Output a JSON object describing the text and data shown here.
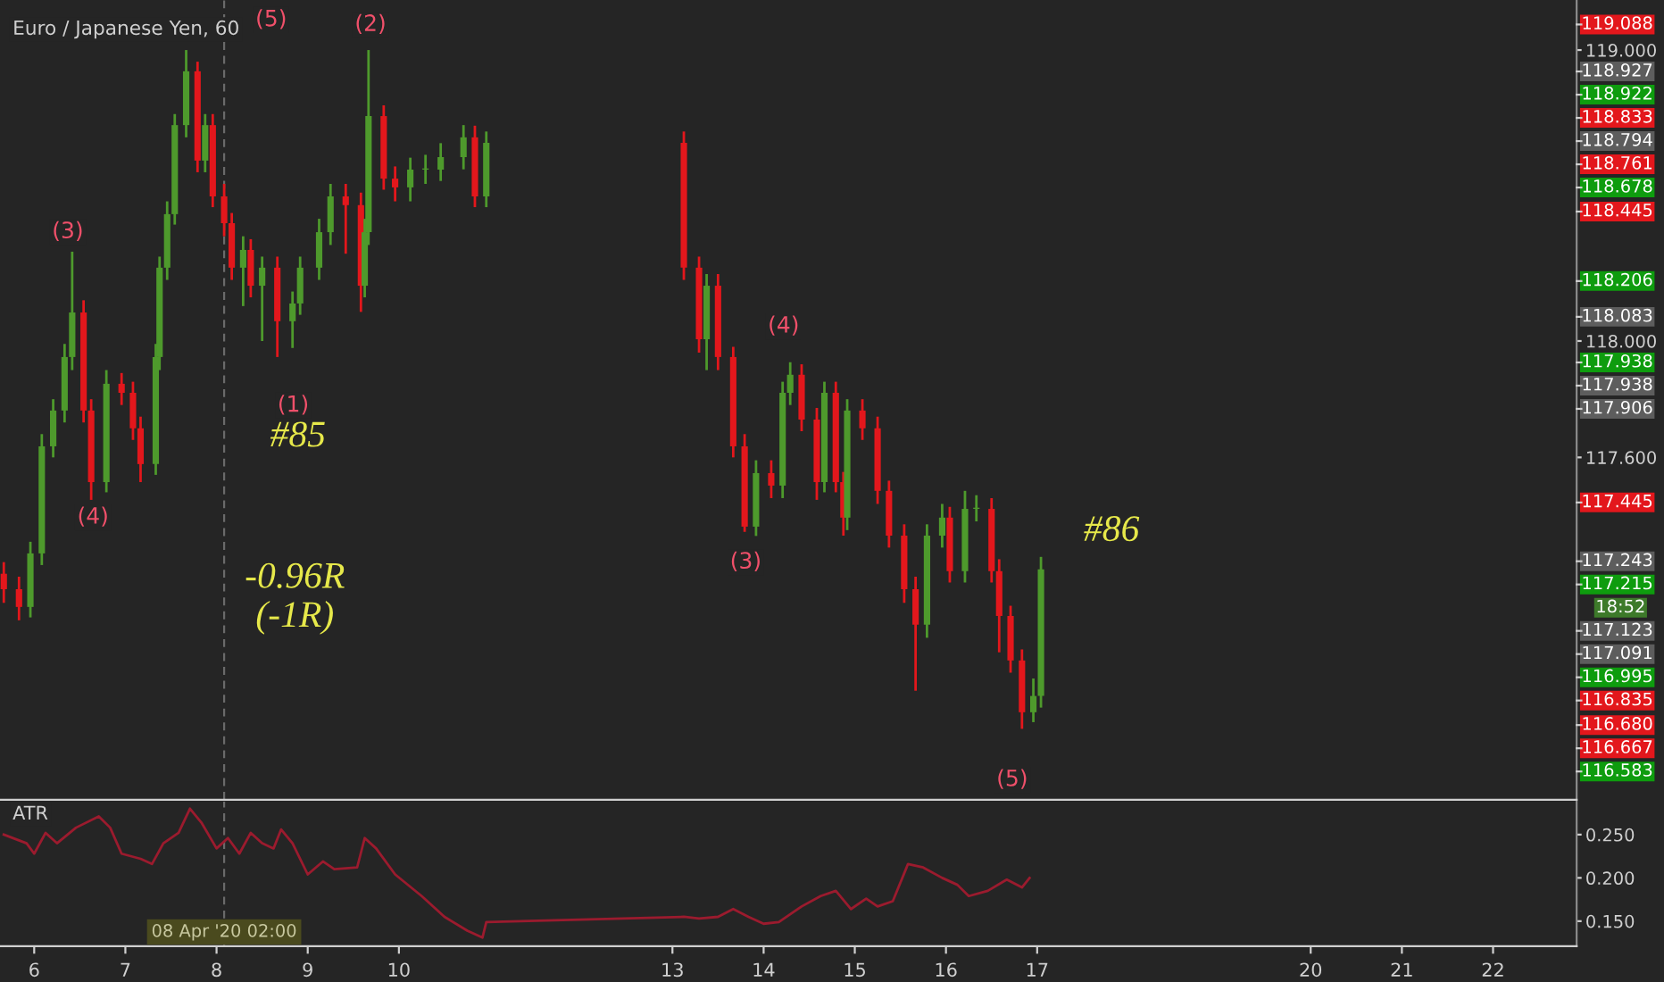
{
  "chart_data": [
    {
      "type": "candlestick",
      "title": "Euro / Japanese Yen, 60",
      "tick_labels": "y",
      "x": [
        "2020-04-05T16:00",
        "2020-04-05T20:00",
        "2020-04-05T23:00",
        "2020-04-06T02:00",
        "2020-04-06T05:00",
        "2020-04-06T08:00",
        "2020-04-06T10:00",
        "2020-04-06T13:00",
        "2020-04-06T15:00",
        "2020-04-06T19:00",
        "2020-04-06T23:00",
        "2020-04-07T02:00",
        "2020-04-07T04:00",
        "2020-04-07T08:00",
        "2020-04-07T09:00",
        "2020-04-07T11:00",
        "2020-04-07T13:00",
        "2020-04-07T16:00",
        "2020-04-07T19:00",
        "2020-04-07T21:00",
        "2020-04-07T23:00",
        "2020-04-08T02:00",
        "2020-04-08T04:00",
        "2020-04-08T07:00",
        "2020-04-08T09:00",
        "2020-04-08T12:00",
        "2020-04-08T16:00",
        "2020-04-08T20:00",
        "2020-04-08T22:00",
        "2020-04-09T03:00",
        "2020-04-09T06:00",
        "2020-04-09T10:00",
        "2020-04-09T14:00",
        "2020-04-09T15:00",
        "2020-04-09T16:00",
        "2020-04-09T20:00",
        "2020-04-09T23:00",
        "2020-04-10T03:00",
        "2020-04-10T07:00",
        "2020-04-10T11:00",
        "2020-04-10T17:00",
        "2020-04-10T20:00",
        "2020-04-10T23:00",
        "2020-04-13T03:00",
        "2020-04-13T07:00",
        "2020-04-13T09:00",
        "2020-04-13T12:00",
        "2020-04-13T16:00",
        "2020-04-13T19:00",
        "2020-04-13T22:00",
        "2020-04-14T02:00",
        "2020-04-14T05:00",
        "2020-04-14T07:00",
        "2020-04-14T10:00",
        "2020-04-14T14:00",
        "2020-04-14T16:00",
        "2020-04-14T19:00",
        "2020-04-14T21:00",
        "2020-04-14T22:00",
        "2020-04-15T02:00",
        "2020-04-15T06:00",
        "2020-04-15T09:00",
        "2020-04-15T13:00",
        "2020-04-15T16:00",
        "2020-04-15T19:00",
        "2020-04-15T23:00",
        "2020-04-16T01:00",
        "2020-04-16T05:00",
        "2020-04-16T08:00",
        "2020-04-16T12:00",
        "2020-04-16T14:00",
        "2020-04-16T17:00",
        "2020-04-16T20:00",
        "2020-04-16T23:00",
        "2020-04-17T01:00"
      ],
      "ohlc": [
        [
          117.2,
          117.24,
          117.1,
          117.147
        ],
        [
          117.147,
          117.19,
          117.04,
          117.086
        ],
        [
          117.086,
          117.31,
          117.05,
          117.27
        ],
        [
          117.27,
          117.68,
          117.23,
          117.638
        ],
        [
          117.638,
          117.8,
          117.6,
          117.761
        ],
        [
          117.761,
          117.99,
          117.72,
          117.945
        ],
        [
          117.945,
          118.307,
          117.9,
          118.098
        ],
        [
          118.098,
          118.14,
          117.72,
          117.761
        ],
        [
          117.761,
          117.8,
          117.454,
          117.515
        ],
        [
          117.515,
          117.9,
          117.48,
          117.853
        ],
        [
          117.853,
          117.89,
          117.78,
          117.822
        ],
        [
          117.822,
          117.86,
          117.66,
          117.7
        ],
        [
          117.7,
          117.74,
          117.515,
          117.577
        ],
        [
          117.577,
          117.99,
          117.54,
          117.945
        ],
        [
          117.945,
          118.29,
          117.9,
          118.252
        ],
        [
          118.252,
          118.48,
          118.21,
          118.436
        ],
        [
          118.436,
          118.78,
          118.4,
          118.742
        ],
        [
          118.742,
          119.0,
          118.7,
          118.927
        ],
        [
          118.927,
          118.96,
          118.58,
          118.62
        ],
        [
          118.62,
          118.78,
          118.58,
          118.742
        ],
        [
          118.742,
          118.78,
          118.46,
          118.497
        ],
        [
          118.497,
          118.54,
          118.36,
          118.405
        ],
        [
          118.405,
          118.44,
          118.21,
          118.252
        ],
        [
          118.252,
          118.36,
          118.12,
          118.313
        ],
        [
          118.313,
          118.35,
          118.15,
          118.19
        ],
        [
          118.19,
          118.29,
          118.0,
          118.252
        ],
        [
          118.252,
          118.29,
          117.945,
          118.068
        ],
        [
          118.068,
          118.17,
          117.976,
          118.129
        ],
        [
          118.129,
          118.29,
          118.09,
          118.252
        ],
        [
          118.252,
          118.42,
          118.21,
          118.374
        ],
        [
          118.374,
          118.54,
          118.33,
          118.497
        ],
        [
          118.497,
          118.54,
          118.3,
          118.467
        ],
        [
          118.467,
          118.51,
          118.1,
          118.19
        ],
        [
          118.19,
          118.42,
          118.15,
          118.374
        ],
        [
          118.374,
          119.0,
          118.33,
          118.773
        ],
        [
          118.773,
          118.81,
          118.52,
          118.558
        ],
        [
          118.558,
          118.6,
          118.48,
          118.528
        ],
        [
          118.528,
          118.63,
          118.48,
          118.589
        ],
        [
          118.589,
          118.64,
          118.54,
          118.589
        ],
        [
          118.589,
          118.68,
          118.55,
          118.632
        ],
        [
          118.632,
          118.742,
          118.59,
          118.7
        ],
        [
          118.7,
          118.74,
          118.46,
          118.497
        ],
        [
          118.497,
          118.72,
          118.46,
          118.681
        ],
        [
          118.681,
          118.72,
          118.21,
          118.252
        ],
        [
          118.252,
          118.29,
          117.96,
          118.006
        ],
        [
          118.006,
          118.23,
          117.9,
          118.19
        ],
        [
          118.19,
          118.23,
          117.9,
          117.945
        ],
        [
          117.945,
          117.98,
          117.6,
          117.638
        ],
        [
          117.638,
          117.68,
          117.344,
          117.362
        ],
        [
          117.362,
          117.59,
          117.33,
          117.546
        ],
        [
          117.546,
          117.59,
          117.46,
          117.503
        ],
        [
          117.503,
          117.86,
          117.46,
          117.822
        ],
        [
          117.822,
          117.927,
          117.78,
          117.884
        ],
        [
          117.884,
          117.92,
          117.69,
          117.73
        ],
        [
          117.73,
          117.77,
          117.454,
          117.515
        ],
        [
          117.515,
          117.86,
          117.48,
          117.822
        ],
        [
          117.822,
          117.86,
          117.48,
          117.515
        ],
        [
          117.515,
          117.55,
          117.331,
          117.393
        ],
        [
          117.393,
          117.8,
          117.35,
          117.761
        ],
        [
          117.761,
          117.8,
          117.66,
          117.7
        ],
        [
          117.7,
          117.74,
          117.44,
          117.485
        ],
        [
          117.485,
          117.52,
          117.29,
          117.331
        ],
        [
          117.331,
          117.37,
          117.1,
          117.147
        ],
        [
          117.147,
          117.19,
          116.798,
          117.025
        ],
        [
          117.025,
          117.37,
          116.98,
          117.331
        ],
        [
          117.331,
          117.44,
          117.29,
          117.393
        ],
        [
          117.393,
          117.43,
          117.17,
          117.209
        ],
        [
          117.209,
          117.485,
          117.17,
          117.423
        ],
        [
          117.423,
          117.47,
          117.38,
          117.423
        ],
        [
          117.423,
          117.46,
          117.17,
          117.209
        ],
        [
          117.209,
          117.25,
          116.93,
          117.055
        ],
        [
          117.055,
          117.09,
          116.86,
          116.902
        ],
        [
          116.902,
          116.94,
          116.667,
          116.724
        ],
        [
          116.724,
          116.84,
          116.69,
          116.78
        ],
        [
          116.78,
          117.258,
          116.74,
          117.215
        ]
      ],
      "colors": [
        "#e3171c",
        "#e3171c",
        "#4e9a2c",
        "#4e9a2c",
        "#4e9a2c",
        "#4e9a2c",
        "#4e9a2c",
        "#e3171c",
        "#e3171c",
        "#4e9a2c",
        "#e3171c",
        "#e3171c",
        "#e3171c",
        "#4e9a2c",
        "#4e9a2c",
        "#4e9a2c",
        "#4e9a2c",
        "#4e9a2c",
        "#e3171c",
        "#4e9a2c",
        "#e3171c",
        "#e3171c",
        "#e3171c",
        "#4e9a2c",
        "#e3171c",
        "#4e9a2c",
        "#e3171c",
        "#4e9a2c",
        "#4e9a2c",
        "#4e9a2c",
        "#4e9a2c",
        "#e3171c",
        "#e3171c",
        "#4e9a2c",
        "#4e9a2c",
        "#e3171c",
        "#e3171c",
        "#4e9a2c",
        "#4e9a2c",
        "#4e9a2c",
        "#4e9a2c",
        "#e3171c",
        "#4e9a2c",
        "#e3171c",
        "#e3171c",
        "#4e9a2c",
        "#e3171c",
        "#e3171c",
        "#e3171c",
        "#4e9a2c",
        "#e3171c",
        "#4e9a2c",
        "#4e9a2c",
        "#e3171c",
        "#e3171c",
        "#4e9a2c",
        "#e3171c",
        "#e3171c",
        "#4e9a2c",
        "#e3171c",
        "#e3171c",
        "#e3171c",
        "#e3171c",
        "#e3171c",
        "#4e9a2c",
        "#4e9a2c",
        "#e3171c",
        "#4e9a2c",
        "#4e9a2c",
        "#e3171c",
        "#e3171c",
        "#e3171c",
        "#e3171c",
        "#4e9a2c",
        "#4e9a2c"
      ],
      "xlim": [
        "2020-04-05T15:00",
        "2020-04-22T22:00"
      ],
      "ylim": [
        116.423,
        119.172
      ],
      "yticks": [
        {
          "value": 119.0,
          "label": "119.000"
        },
        {
          "value": 118.0,
          "label": "118.000"
        },
        {
          "value": 117.6,
          "label": "117.600"
        }
      ],
      "ref_lines": [
        {
          "axis": "x",
          "value": "2020-04-08T02:00",
          "label": null,
          "line_style": "dashed",
          "color": "#6a6a6a"
        }
      ],
      "annotations": [
        "(5)",
        "(2)",
        "(3)",
        "(4)",
        "(1)",
        "(3)",
        "(4)",
        "(5)",
        "#85",
        "-0.96R\n(-1R)",
        "#86",
        "119.088",
        "118.927",
        "118.922",
        "118.833",
        "118.794",
        "118.761",
        "118.678",
        "118.445",
        "118.206",
        "118.083",
        "117.938",
        "117.938",
        "117.906",
        "117.445",
        "117.243",
        "117.215",
        "18:52",
        "117.123",
        "117.091",
        "116.995",
        "116.835",
        "116.680",
        "116.667",
        "116.583"
      ]
    },
    {
      "type": "line",
      "title": "ATR",
      "x": [
        "2020-04-05T16:00",
        "2020-04-05T22:00",
        "2020-04-06T00:00",
        "2020-04-06T03:00",
        "2020-04-06T06:00",
        "2020-04-06T11:00",
        "2020-04-06T17:00",
        "2020-04-06T20:00",
        "2020-04-06T23:00",
        "2020-04-07T04:00",
        "2020-04-07T07:00",
        "2020-04-07T10:00",
        "2020-04-07T14:00",
        "2020-04-07T17:00",
        "2020-04-07T20:00",
        "2020-04-08T00:00",
        "2020-04-08T03:00",
        "2020-04-08T06:00",
        "2020-04-08T09:00",
        "2020-04-08T12:00",
        "2020-04-08T15:00",
        "2020-04-08T17:00",
        "2020-04-08T20:00",
        "2020-04-09T00:00",
        "2020-04-09T04:00",
        "2020-04-09T07:00",
        "2020-04-09T13:00",
        "2020-04-09T15:00",
        "2020-04-09T18:00",
        "2020-04-09T23:00",
        "2020-04-10T06:00",
        "2020-04-10T12:00",
        "2020-04-10T18:00",
        "2020-04-10T22:00",
        "2020-04-10T23:00",
        "2020-04-13T03:00",
        "2020-04-13T07:00",
        "2020-04-13T12:00",
        "2020-04-13T16:00",
        "2020-04-13T20:00",
        "2020-04-14T00:00",
        "2020-04-14T04:00",
        "2020-04-14T10:00",
        "2020-04-14T15:00",
        "2020-04-14T19:00",
        "2020-04-14T23:00",
        "2020-04-15T03:00",
        "2020-04-15T06:00",
        "2020-04-15T10:00",
        "2020-04-15T14:00",
        "2020-04-15T18:00",
        "2020-04-15T23:00",
        "2020-04-16T03:00",
        "2020-04-16T06:00",
        "2020-04-16T11:00",
        "2020-04-16T16:00",
        "2020-04-16T20:00",
        "2020-04-16T22:00"
      ],
      "series": [
        {
          "color": "#9b1b2e",
          "values": [
            0.25,
            0.24,
            0.228,
            0.252,
            0.24,
            0.258,
            0.271,
            0.258,
            0.228,
            0.222,
            0.216,
            0.24,
            0.252,
            0.28,
            0.264,
            0.234,
            0.246,
            0.228,
            0.252,
            0.24,
            0.234,
            0.256,
            0.24,
            0.204,
            0.219,
            0.21,
            0.212,
            0.246,
            0.234,
            0.204,
            0.179,
            0.155,
            0.139,
            0.131,
            0.149,
            0.155,
            0.153,
            0.155,
            0.164,
            0.155,
            0.147,
            0.149,
            0.167,
            0.179,
            0.185,
            0.164,
            0.176,
            0.167,
            0.173,
            0.216,
            0.212,
            0.2,
            0.192,
            0.179,
            0.185,
            0.198,
            0.189,
            0.2
          ]
        }
      ],
      "xlim": [
        "2020-04-05T15:00",
        "2020-04-22T22:00"
      ],
      "ylim": [
        0.121,
        0.288
      ],
      "xticks": [
        {
          "value": "2020-04-06",
          "label": "6"
        },
        {
          "value": "2020-04-07",
          "label": "7"
        },
        {
          "value": "2020-04-08",
          "label": "8"
        },
        {
          "value": "2020-04-09",
          "label": "9"
        },
        {
          "value": "2020-04-10",
          "label": "10"
        },
        {
          "value": "2020-04-13",
          "label": "13"
        },
        {
          "value": "2020-04-14",
          "label": "14"
        },
        {
          "value": "2020-04-15",
          "label": "15"
        },
        {
          "value": "2020-04-16",
          "label": "16"
        },
        {
          "value": "2020-04-17",
          "label": "17"
        },
        {
          "value": "2020-04-20",
          "label": "20"
        },
        {
          "value": "2020-04-21",
          "label": "21"
        },
        {
          "value": "2020-04-22",
          "label": "22"
        }
      ],
      "yticks": [
        {
          "value": 0.25,
          "label": "0.250"
        },
        {
          "value": 0.2,
          "label": "0.200"
        },
        {
          "value": 0.15,
          "label": "0.150"
        }
      ],
      "ref_lines": [
        {
          "axis": "x",
          "value": "2020-04-08T02:00",
          "label": "08 Apr '20 02:00",
          "line_style": "dashed",
          "color": "#6a6a6a"
        }
      ]
    }
  ]
}
